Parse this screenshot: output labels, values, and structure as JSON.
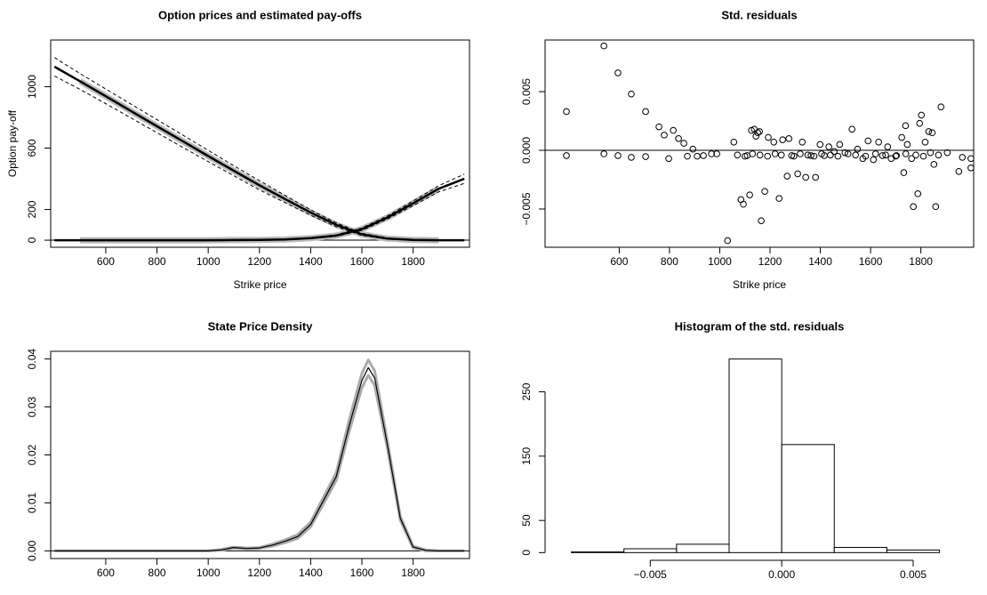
{
  "chart_data": [
    {
      "type": "line",
      "title": "Option prices and estimated pay-offs",
      "xlabel": "Strike price",
      "ylabel": "Option pay-off",
      "x": [
        400,
        500,
        600,
        700,
        800,
        900,
        1000,
        1100,
        1200,
        1300,
        1400,
        1500,
        1600,
        1700,
        1800,
        1900,
        2000
      ],
      "series": [
        {
          "color": "#bbbbbb",
          "width": 7,
          "values": [
            null,
            1035,
            938,
            840,
            742,
            645,
            548,
            452,
            358,
            268,
            180,
            100,
            38,
            10,
            2,
            0,
            null
          ]
        },
        {
          "color": "#bbbbbb",
          "width": 7,
          "values": [
            null,
            0,
            0,
            0,
            0,
            0,
            0,
            1,
            2,
            5,
            13,
            30,
            72,
            148,
            240,
            335,
            null
          ]
        },
        {
          "color": "#000000",
          "width": 1,
          "dashed": true,
          "values": [
            1190,
            1085,
            985,
            885,
            785,
            685,
            585,
            485,
            388,
            292,
            198,
            112,
            45,
            14,
            4,
            1,
            0
          ]
        },
        {
          "color": "#000000",
          "width": 1,
          "dashed": true,
          "values": [
            1070,
            982,
            890,
            795,
            700,
            605,
            512,
            420,
            328,
            244,
            162,
            88,
            31,
            7,
            1,
            0,
            0
          ]
        },
        {
          "color": "#000000",
          "width": 1,
          "dashed": true,
          "values": [
            0,
            0,
            0,
            0,
            0,
            0,
            0,
            1,
            3,
            7,
            16,
            35,
            80,
            158,
            255,
            355,
            430
          ]
        },
        {
          "color": "#000000",
          "width": 1,
          "dashed": true,
          "values": [
            0,
            0,
            0,
            0,
            0,
            0,
            0,
            0,
            1,
            3,
            10,
            25,
            64,
            138,
            225,
            315,
            370
          ]
        },
        {
          "color": "#000000",
          "width": 2.5,
          "values": [
            1130,
            1035,
            938,
            840,
            742,
            645,
            548,
            452,
            358,
            268,
            180,
            100,
            38,
            10,
            2,
            0,
            0
          ]
        },
        {
          "color": "#000000",
          "width": 2.5,
          "values": [
            0,
            0,
            0,
            0,
            0,
            0,
            0,
            1,
            2,
            5,
            13,
            30,
            72,
            148,
            240,
            335,
            400
          ]
        }
      ],
      "hline": 0,
      "xlim": [
        385,
        2020
      ],
      "xticks": [
        600,
        800,
        1000,
        1200,
        1400,
        1600,
        1800
      ],
      "ylim": [
        -46,
        1304
      ],
      "yticks": [
        0,
        200,
        600,
        1000
      ]
    },
    {
      "type": "scatter",
      "title": "Std. residuals",
      "xlabel": "Strike price",
      "color": "#000000",
      "x": [
        390,
        390,
        539,
        539,
        595,
        595,
        648,
        648,
        705,
        705,
        758,
        779,
        797,
        815,
        836,
        857,
        871,
        893,
        910,
        935,
        967,
        988,
        1031,
        1056,
        1084,
        1094,
        1109,
        1119,
        1126,
        1137,
        1144,
        1151,
        1158,
        1165,
        1179,
        1193,
        1215,
        1236,
        1250,
        1268,
        1275,
        1286,
        1310,
        1328,
        1342,
        1363,
        1381,
        1399,
        1416,
        1434,
        1455,
        1477,
        1498,
        1526,
        1548,
        1569,
        1590,
        1611,
        1632,
        1647,
        1668,
        1682,
        1703,
        1724,
        1732,
        1739,
        1746,
        1763,
        1770,
        1788,
        1795,
        1802,
        1817,
        1831,
        1838,
        1845,
        1852,
        1859,
        1870,
        1880,
        1905,
        1951,
        1965,
        1999,
        1999,
        1070,
        1100,
        1130,
        1160,
        1190,
        1220,
        1245,
        1295,
        1320,
        1350,
        1375,
        1405,
        1440,
        1470,
        1510,
        1540,
        1580,
        1620,
        1660,
        1700,
        1740,
        1780,
        1810
      ],
      "values": [
        0.0033,
        -0.00045,
        0.0089,
        -0.0003,
        0.0066,
        -0.00045,
        0.0048,
        -0.0006,
        0.0033,
        -0.00053,
        0.002,
        0.0013,
        -0.0007,
        0.0017,
        0.001,
        0.0006,
        -0.0005,
        0.0001,
        -0.0005,
        -0.00045,
        -0.0003,
        -0.0003,
        -0.0077,
        0.0007,
        -0.0042,
        -0.0046,
        -0.00045,
        -0.0038,
        0.0017,
        0.0018,
        0.0012,
        0.0015,
        0.0016,
        -0.006,
        -0.0035,
        0.0011,
        0.0007,
        -0.0041,
        0.0009,
        -0.0022,
        0.001,
        -0.00045,
        -0.002,
        0.0007,
        -0.0023,
        -0.00045,
        -0.0023,
        0.0005,
        -0.00045,
        0.0003,
        -0.0001,
        0.0005,
        -0.0002,
        0.0018,
        0.0001,
        -0.0007,
        0.0008,
        -0.0008,
        0.0007,
        -0.00045,
        0.0003,
        -0.0007,
        -0.00045,
        0.0011,
        -0.0019,
        0.0021,
        0.0005,
        -0.0007,
        -0.0048,
        -0.0037,
        0.0023,
        0.003,
        0.0007,
        0.0016,
        -0.0002,
        0.0015,
        -0.0012,
        -0.0048,
        -0.0004,
        0.0037,
        -0.0002,
        -0.0018,
        -0.0006,
        -0.0007,
        -0.0015,
        -0.0004,
        -0.0005,
        -0.0003,
        -0.0004,
        -0.0005,
        -0.0003,
        -0.0004,
        -0.0005,
        -0.0003,
        -0.0004,
        -0.0005,
        -0.0003,
        -0.0004,
        -0.0005,
        -0.0003,
        -0.0004,
        -0.0005,
        -0.0003,
        -0.0004,
        -0.0005,
        -0.0003,
        -0.0004,
        -0.0005
      ],
      "hline": 0,
      "xlim": [
        305,
        2010
      ],
      "xticks": [
        600,
        800,
        1000,
        1200,
        1400,
        1600,
        1800
      ],
      "ylim": [
        -0.00826,
        0.0094
      ],
      "yticks": [
        {
          "value": -0.005,
          "label": "−0.005"
        },
        {
          "value": 0,
          "label": "0.000"
        },
        0.005
      ]
    },
    {
      "type": "line",
      "title": "State Price Density",
      "x": [
        400,
        500,
        600,
        700,
        800,
        900,
        1000,
        1050,
        1100,
        1150,
        1200,
        1250,
        1300,
        1350,
        1400,
        1450,
        1500,
        1550,
        1600,
        1625,
        1650,
        1700,
        1750,
        1800,
        1850,
        1900,
        2000
      ],
      "series": [
        {
          "color": "#aaaaaa",
          "width": 3,
          "values": [
            0,
            0,
            0,
            0,
            0,
            0,
            0,
            0.0003,
            0.0008,
            0.0006,
            0.0007,
            0.0014,
            0.0023,
            0.0034,
            0.006,
            0.0112,
            0.0163,
            0.0272,
            0.037,
            0.0398,
            0.0375,
            0.0228,
            0.0072,
            0.001,
            0.0002,
            0,
            0
          ]
        },
        {
          "color": "#aaaaaa",
          "width": 3,
          "values": [
            0,
            0,
            0,
            0,
            0,
            0,
            0,
            0.0001,
            0.0006,
            0.0004,
            0.0005,
            0.001,
            0.0017,
            0.0026,
            0.005,
            0.0098,
            0.0147,
            0.0248,
            0.034,
            0.0366,
            0.0345,
            0.0212,
            0.0064,
            0.0006,
            0,
            0,
            0
          ]
        },
        {
          "color": "#000000",
          "width": 1.2,
          "values": [
            0,
            0,
            0,
            0,
            0,
            0,
            0,
            0.0002,
            0.0007,
            0.0005,
            0.0006,
            0.0012,
            0.002,
            0.003,
            0.0055,
            0.0105,
            0.0155,
            0.026,
            0.0355,
            0.0382,
            0.036,
            0.022,
            0.0068,
            0.0008,
            0.0001,
            0,
            0
          ]
        }
      ],
      "hline": 0,
      "xlim": [
        385,
        2020
      ],
      "xticks": [
        600,
        800,
        1000,
        1200,
        1400,
        1600,
        1800
      ],
      "ylim": [
        -0.0016,
        0.0416
      ],
      "yticks": [
        {
          "value": 0,
          "label": "0.00"
        },
        0.01,
        0.02,
        0.03,
        0.04
      ]
    },
    {
      "type": "histogram",
      "title": "Histogram of the std. residuals",
      "bins": [
        -0.008,
        -0.006,
        -0.004,
        -0.002,
        0,
        0.002,
        0.004,
        0.006
      ],
      "values": [
        1,
        6,
        13,
        301,
        168,
        8,
        4
      ],
      "xlim": [
        -0.009,
        0.0073
      ],
      "xticks": [
        {
          "value": -0.005,
          "label": "−0.005"
        },
        {
          "value": 0,
          "label": "0.000"
        },
        0.005
      ],
      "ylim": [
        -12,
        313
      ],
      "yticks": [
        0,
        50,
        150,
        250
      ]
    }
  ]
}
